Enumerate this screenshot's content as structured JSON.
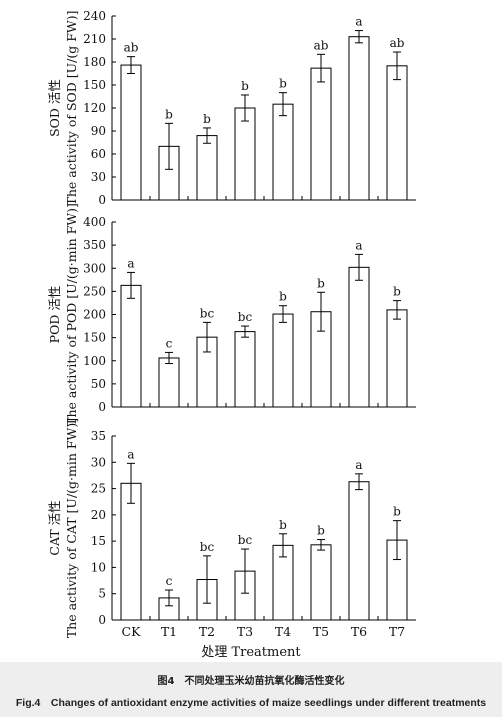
{
  "x_title": "处理 Treatment",
  "caption": {
    "cn": "图4　不同处理玉米幼苗抗氧化酶活性变化",
    "en": "Fig.4　Changes of antioxidant enzyme activities of maize seedlings under different treatments"
  },
  "chart_data": [
    {
      "type": "bar",
      "ylabel_cn": "SOD 活性",
      "ylabel_en": "The activity of SOD [U/(g FW)]",
      "ylim": [
        0,
        240
      ],
      "yticks": [
        0,
        30,
        60,
        90,
        120,
        150,
        180,
        210,
        240
      ],
      "categories": [
        "CK",
        "T1",
        "T2",
        "T3",
        "T4",
        "T5",
        "T6",
        "T7"
      ],
      "values": [
        176,
        70,
        84,
        120,
        125,
        172,
        213,
        175
      ],
      "errors": [
        11,
        30,
        10,
        17,
        15,
        18,
        8,
        18
      ],
      "letters": [
        "ab",
        "b",
        "b",
        "b",
        "b",
        "ab",
        "a",
        "ab"
      ]
    },
    {
      "type": "bar",
      "ylabel_cn": "POD 活性",
      "ylabel_en": "The activity of POD [U/(g·min FW)]",
      "ylim": [
        0,
        400
      ],
      "yticks": [
        0,
        50,
        100,
        150,
        200,
        250,
        300,
        350,
        400
      ],
      "categories": [
        "CK",
        "T1",
        "T2",
        "T3",
        "T4",
        "T5",
        "T6",
        "T7"
      ],
      "values": [
        263,
        106,
        151,
        163,
        201,
        206,
        302,
        210
      ],
      "errors": [
        28,
        12,
        32,
        12,
        18,
        42,
        28,
        20
      ],
      "letters": [
        "a",
        "c",
        "bc",
        "bc",
        "b",
        "b",
        "a",
        "b"
      ]
    },
    {
      "type": "bar",
      "ylabel_cn": "CAT 活性",
      "ylabel_en": "The activity of CAT [U/(g·min FW)]",
      "ylim": [
        0,
        35
      ],
      "yticks": [
        0,
        5,
        10,
        15,
        20,
        25,
        30,
        35
      ],
      "categories": [
        "CK",
        "T1",
        "T2",
        "T3",
        "T4",
        "T5",
        "T6",
        "T7"
      ],
      "values": [
        26,
        4.2,
        7.7,
        9.3,
        14.2,
        14.3,
        26.3,
        15.2
      ],
      "errors": [
        3.8,
        1.5,
        4.5,
        4.2,
        2.2,
        1.0,
        1.5,
        3.7
      ],
      "letters": [
        "a",
        "c",
        "bc",
        "bc",
        "b",
        "b",
        "a",
        "b"
      ]
    }
  ]
}
